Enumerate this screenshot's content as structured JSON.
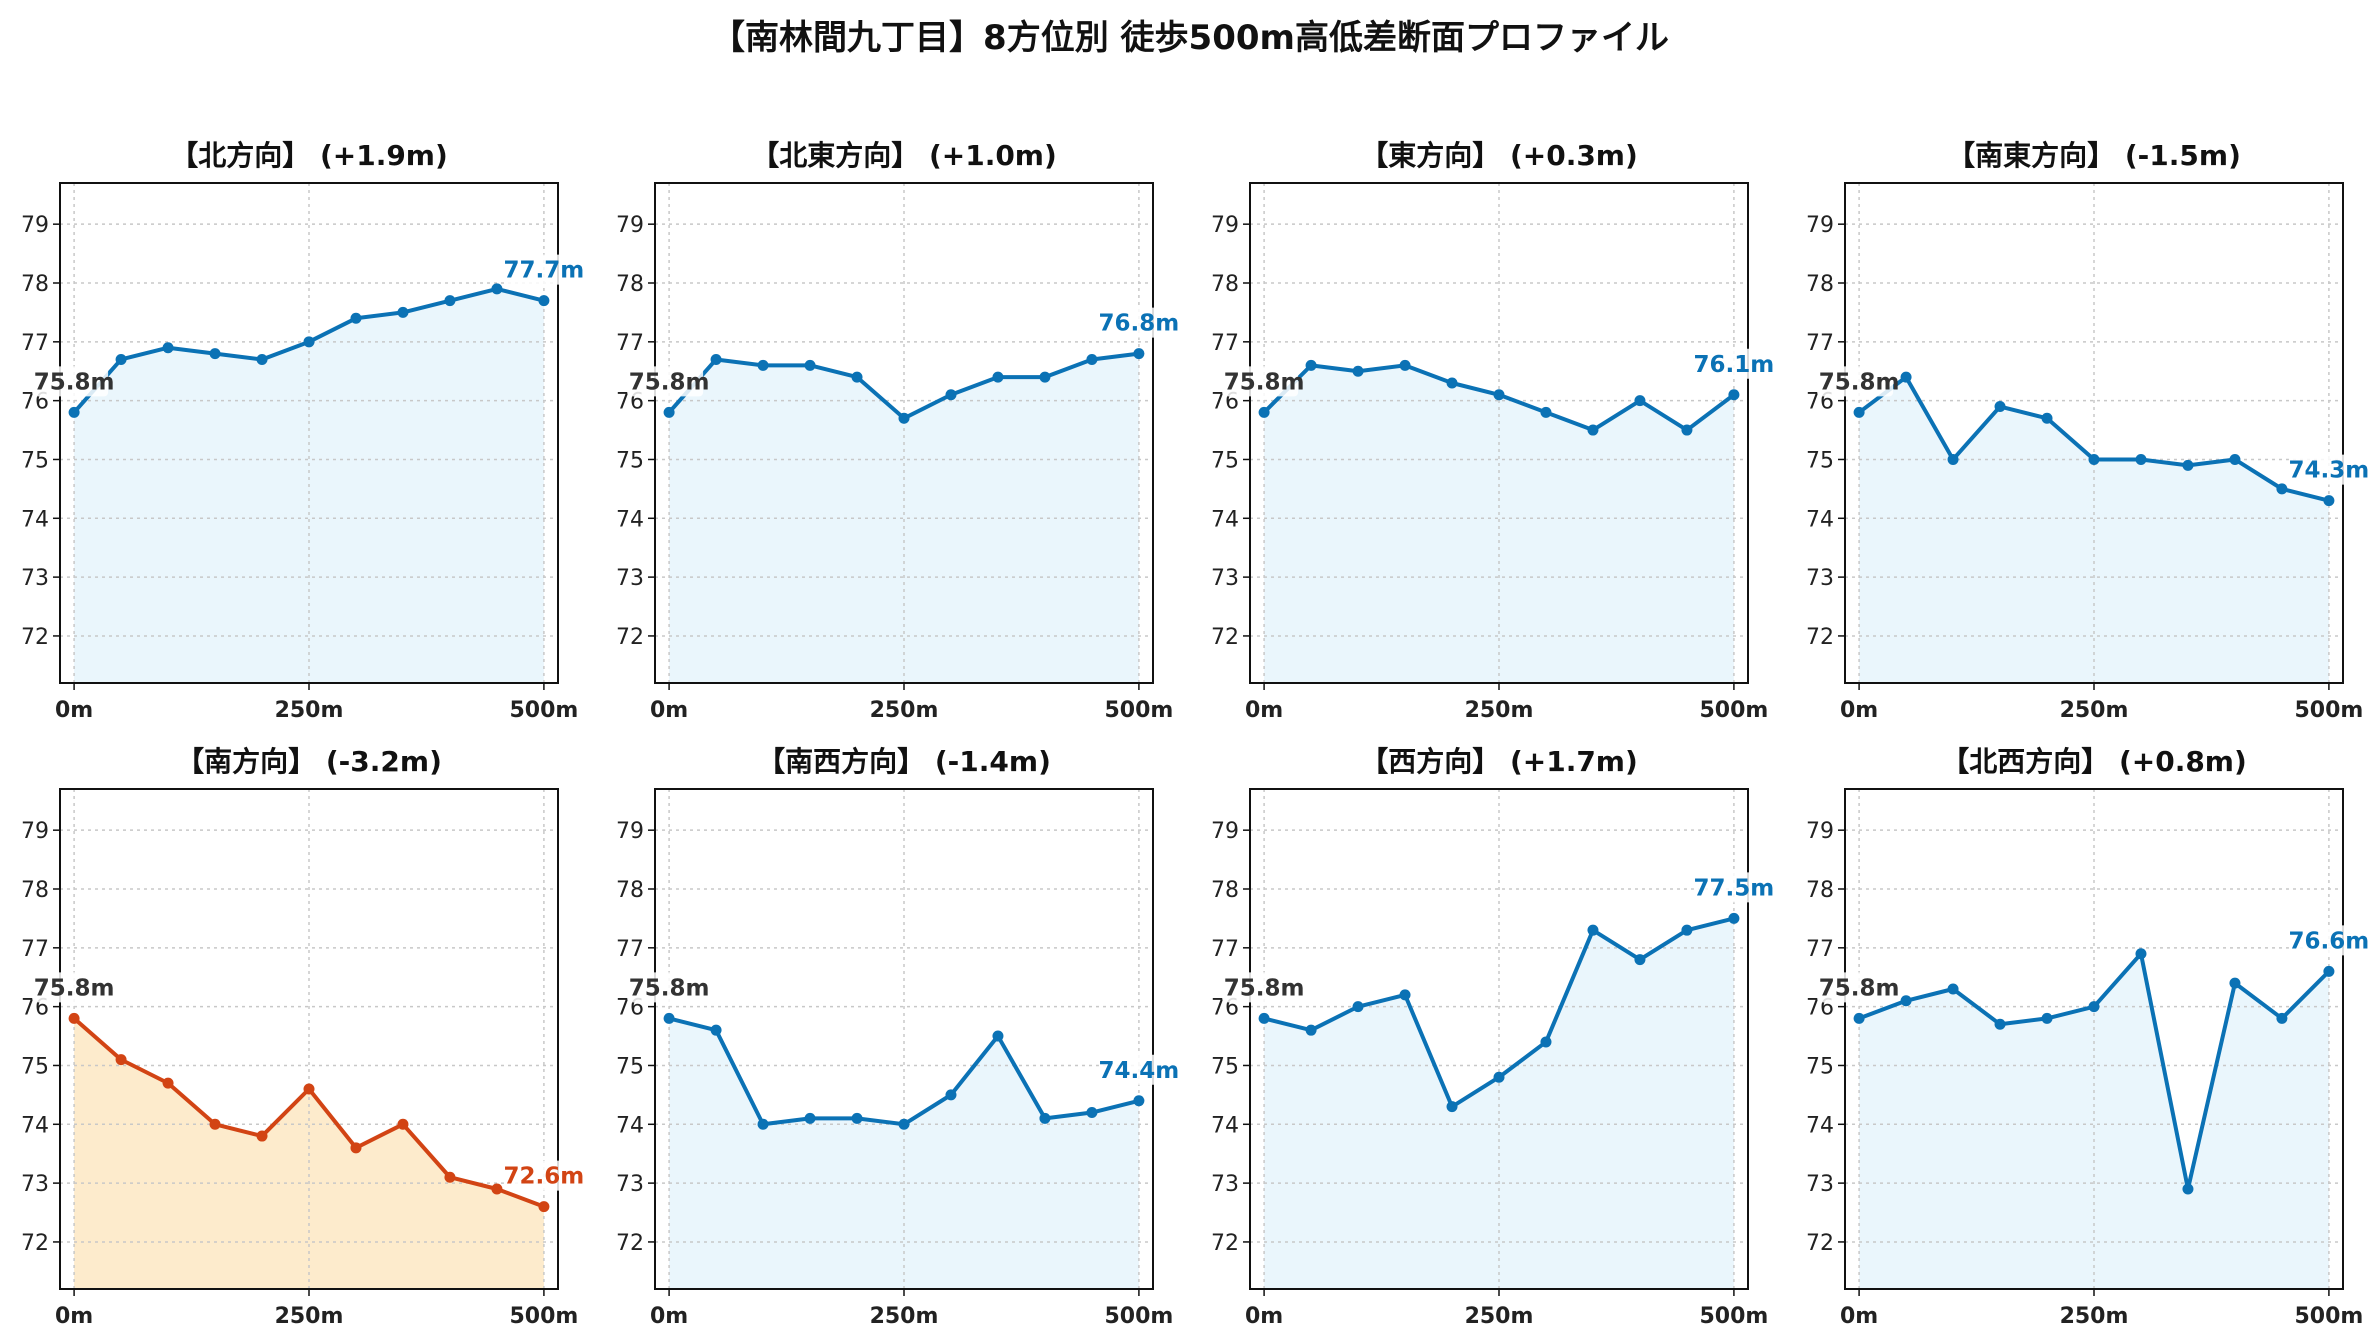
{
  "figure_title": "【南林間九丁目】8方位別 徒歩500m高低差断面プロファイル",
  "colors": {
    "normal_line": "#0b72b5",
    "normal_fill": "#eaf6fc",
    "normal_label": "#0b72b5",
    "highlight_line": "#d24414",
    "highlight_fill": "#fdebcc",
    "highlight_label": "#d24414",
    "start_label": "#333333",
    "grid": "#c8c8c8"
  },
  "chart_data": [
    {
      "type": "area",
      "title": "【北方向】 (+1.9m)",
      "x": [
        0,
        50,
        100,
        150,
        200,
        250,
        300,
        350,
        400,
        450,
        500
      ],
      "values": [
        75.8,
        76.7,
        76.9,
        76.8,
        76.7,
        77.0,
        77.4,
        77.5,
        77.7,
        77.9,
        77.7
      ],
      "start_label": "75.8m",
      "end_label": "77.7m",
      "highlight": false,
      "xticks": [
        "0m",
        "250m",
        "500m"
      ],
      "yticks": [
        72,
        73,
        74,
        75,
        76,
        77,
        78,
        79
      ],
      "ylim": [
        71.2,
        79.7
      ],
      "xlim": [
        -15,
        515
      ],
      "grid": true
    },
    {
      "type": "area",
      "title": "【北東方向】 (+1.0m)",
      "x": [
        0,
        50,
        100,
        150,
        200,
        250,
        300,
        350,
        400,
        450,
        500
      ],
      "values": [
        75.8,
        76.7,
        76.6,
        76.6,
        76.4,
        75.7,
        76.1,
        76.4,
        76.4,
        76.7,
        76.8
      ],
      "start_label": "75.8m",
      "end_label": "76.8m",
      "highlight": false,
      "xticks": [
        "0m",
        "250m",
        "500m"
      ],
      "yticks": [
        72,
        73,
        74,
        75,
        76,
        77,
        78,
        79
      ],
      "ylim": [
        71.2,
        79.7
      ],
      "xlim": [
        -15,
        515
      ],
      "grid": true
    },
    {
      "type": "area",
      "title": "【東方向】 (+0.3m)",
      "x": [
        0,
        50,
        100,
        150,
        200,
        250,
        300,
        350,
        400,
        450,
        500
      ],
      "values": [
        75.8,
        76.6,
        76.5,
        76.6,
        76.3,
        76.1,
        75.8,
        75.5,
        76.0,
        75.5,
        76.1
      ],
      "start_label": "75.8m",
      "end_label": "76.1m",
      "highlight": false,
      "xticks": [
        "0m",
        "250m",
        "500m"
      ],
      "yticks": [
        72,
        73,
        74,
        75,
        76,
        77,
        78,
        79
      ],
      "ylim": [
        71.2,
        79.7
      ],
      "xlim": [
        -15,
        515
      ],
      "grid": true
    },
    {
      "type": "area",
      "title": "【南東方向】 (-1.5m)",
      "x": [
        0,
        50,
        100,
        150,
        200,
        250,
        300,
        350,
        400,
        450,
        500
      ],
      "values": [
        75.8,
        76.4,
        75.0,
        75.9,
        75.7,
        75.0,
        75.0,
        74.9,
        75.0,
        74.5,
        74.3
      ],
      "start_label": "75.8m",
      "end_label": "74.3m",
      "highlight": false,
      "xticks": [
        "0m",
        "250m",
        "500m"
      ],
      "yticks": [
        72,
        73,
        74,
        75,
        76,
        77,
        78,
        79
      ],
      "ylim": [
        71.2,
        79.7
      ],
      "xlim": [
        -15,
        515
      ],
      "grid": true
    },
    {
      "type": "area",
      "title": "【南方向】 (-3.2m)",
      "x": [
        0,
        50,
        100,
        150,
        200,
        250,
        300,
        350,
        400,
        450,
        500
      ],
      "values": [
        75.8,
        75.1,
        74.7,
        74.0,
        73.8,
        74.6,
        73.6,
        74.0,
        73.1,
        72.9,
        72.6
      ],
      "start_label": "75.8m",
      "end_label": "72.6m",
      "highlight": true,
      "xticks": [
        "0m",
        "250m",
        "500m"
      ],
      "yticks": [
        72,
        73,
        74,
        75,
        76,
        77,
        78,
        79
      ],
      "ylim": [
        71.2,
        79.7
      ],
      "xlim": [
        -15,
        515
      ],
      "grid": true
    },
    {
      "type": "area",
      "title": "【南西方向】 (-1.4m)",
      "x": [
        0,
        50,
        100,
        150,
        200,
        250,
        300,
        350,
        400,
        450,
        500
      ],
      "values": [
        75.8,
        75.6,
        74.0,
        74.1,
        74.1,
        74.0,
        74.5,
        75.5,
        74.1,
        74.2,
        74.4
      ],
      "start_label": "75.8m",
      "end_label": "74.4m",
      "highlight": false,
      "xticks": [
        "0m",
        "250m",
        "500m"
      ],
      "yticks": [
        72,
        73,
        74,
        75,
        76,
        77,
        78,
        79
      ],
      "ylim": [
        71.2,
        79.7
      ],
      "xlim": [
        -15,
        515
      ],
      "grid": true
    },
    {
      "type": "area",
      "title": "【西方向】 (+1.7m)",
      "x": [
        0,
        50,
        100,
        150,
        200,
        250,
        300,
        350,
        400,
        450,
        500
      ],
      "values": [
        75.8,
        75.6,
        76.0,
        76.2,
        74.3,
        74.8,
        75.4,
        77.3,
        76.8,
        77.3,
        77.5
      ],
      "start_label": "75.8m",
      "end_label": "77.5m",
      "highlight": false,
      "xticks": [
        "0m",
        "250m",
        "500m"
      ],
      "yticks": [
        72,
        73,
        74,
        75,
        76,
        77,
        78,
        79
      ],
      "ylim": [
        71.2,
        79.7
      ],
      "xlim": [
        -15,
        515
      ],
      "grid": true
    },
    {
      "type": "area",
      "title": "【北西方向】 (+0.8m)",
      "x": [
        0,
        50,
        100,
        150,
        200,
        250,
        300,
        350,
        400,
        450,
        500
      ],
      "values": [
        75.8,
        76.1,
        76.3,
        75.7,
        75.8,
        76.0,
        76.9,
        72.9,
        76.4,
        75.8,
        76.6
      ],
      "start_label": "75.8m",
      "end_label": "76.6m",
      "highlight": false,
      "xticks": [
        "0m",
        "250m",
        "500m"
      ],
      "yticks": [
        72,
        73,
        74,
        75,
        76,
        77,
        78,
        79
      ],
      "ylim": [
        71.2,
        79.7
      ],
      "xlim": [
        -15,
        515
      ],
      "grid": true
    }
  ]
}
